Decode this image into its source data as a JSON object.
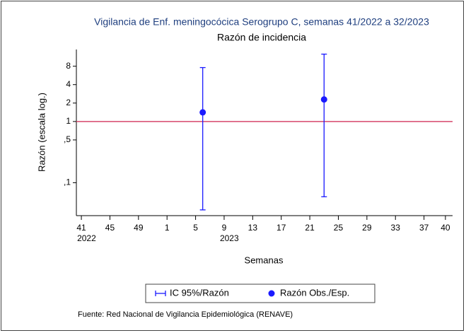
{
  "chart_data": {
    "type": "errorbar",
    "title": "Vigilancia de Enf. meningocócica Serogrupo C, semanas 41/2022 a 32/2023",
    "subtitle": "Razón de incidencia",
    "y_label": "Razón (escala log.)",
    "x_label": "Semanas",
    "source": "Fuente: Red Nacional de Vigilancia Epidemiológica (RENAVE)",
    "log_y": true,
    "xlim": [
      40.3,
      93
    ],
    "ylim": [
      0.029,
      15
    ],
    "xticks": [
      41,
      45,
      49,
      {
        "value": 53,
        "label": "1"
      },
      {
        "value": 57,
        "label": "5"
      },
      {
        "value": 61,
        "label": "9"
      },
      {
        "value": 65,
        "label": "13"
      },
      {
        "value": 69,
        "label": "17"
      },
      {
        "value": 73,
        "label": "21"
      },
      {
        "value": 77,
        "label": "25"
      },
      {
        "value": 81,
        "label": "29"
      },
      {
        "value": 85,
        "label": "33"
      },
      {
        "value": 89,
        "label": "37"
      },
      {
        "value": 92,
        "label": "40"
      }
    ],
    "year_labels": [
      {
        "text": "2022",
        "x": 41
      },
      {
        "text": "2023",
        "x": 61
      }
    ],
    "yticks": [
      8,
      4,
      2,
      1,
      {
        "value": 0.5,
        "label": ",5"
      },
      {
        "value": 0.1,
        "label": ",1"
      }
    ],
    "reference_line": {
      "y": 1,
      "color": "#d6476b"
    },
    "ci_name": "IC 95%/Razón",
    "series": [
      {
        "name": "Razón Obs./Esp.",
        "color": "#1a1aff",
        "x": [
          58,
          75
        ],
        "values": [
          1.41,
          2.29
        ],
        "lower": [
          0.036,
          0.059
        ],
        "upper": [
          7.6,
          12.6
        ]
      }
    ]
  }
}
